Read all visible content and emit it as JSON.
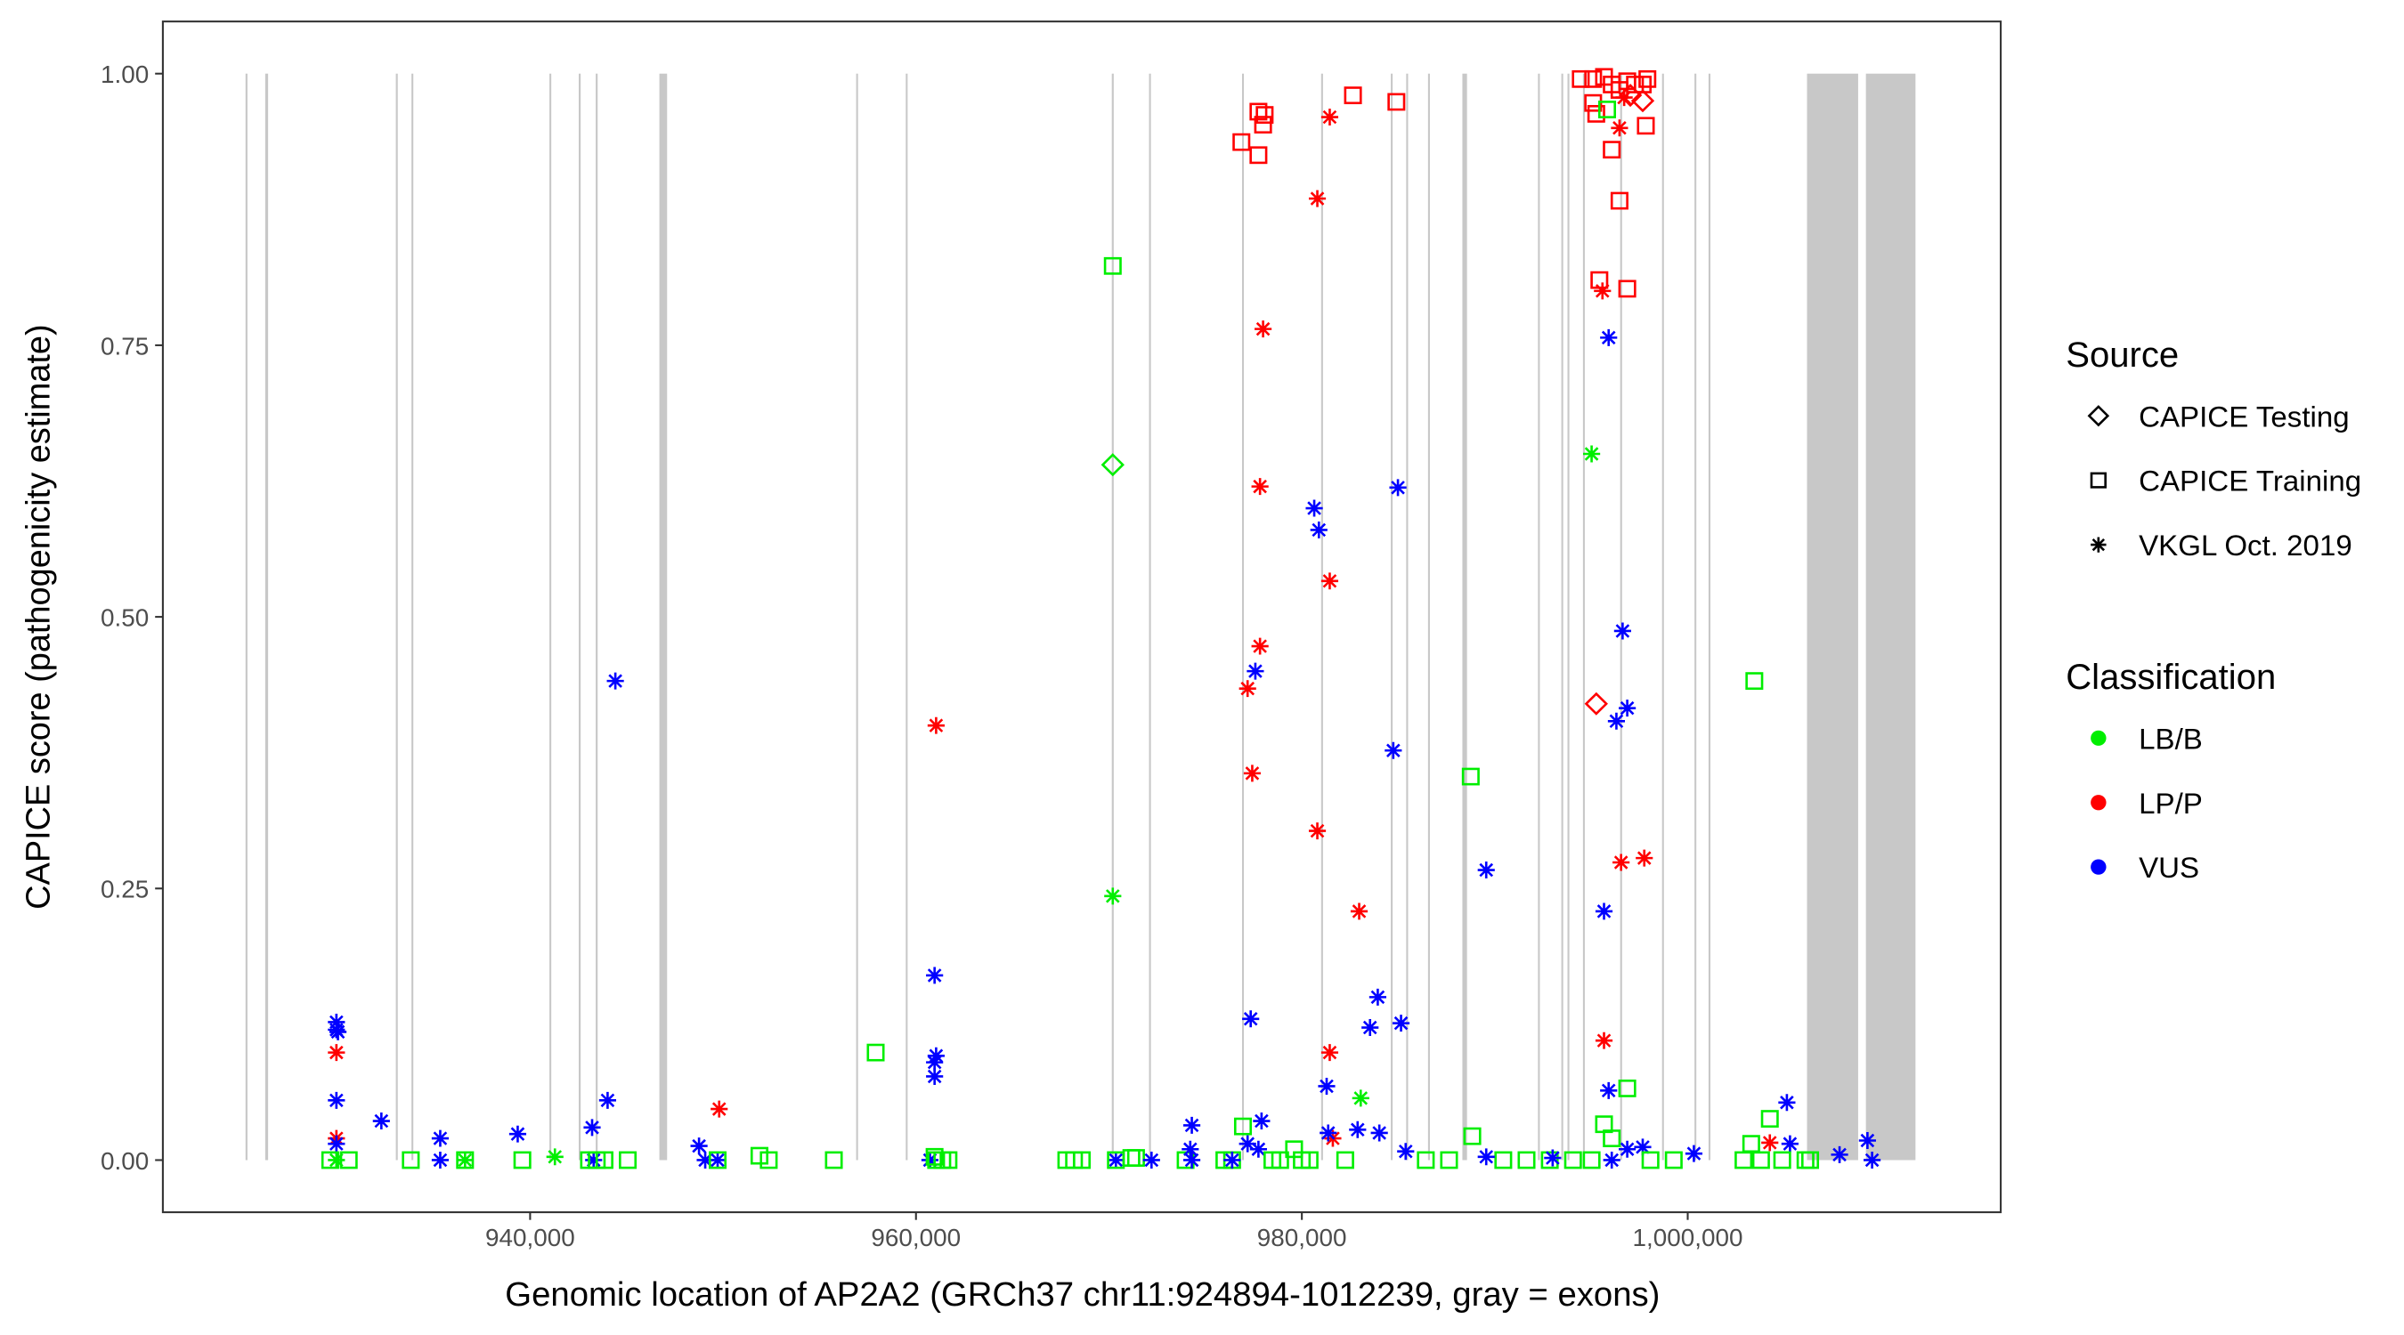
{
  "chart_data": {
    "type": "scatter",
    "xlabel": "Genomic location of AP2A2 (GRCh37 chr11:924894-1012239, gray = exons)",
    "ylabel": "CAPICE score (pathogenicity estimate)",
    "xlim": [
      920964,
      1016225
    ],
    "ylim": [
      -0.048,
      1.048
    ],
    "x_ticks": [
      940000,
      960000,
      980000,
      1000000
    ],
    "x_tick_labels": [
      "940,000",
      "960,000",
      "980,000",
      "1,000,000"
    ],
    "y_ticks": [
      0,
      0.25,
      0.5,
      0.75,
      1.0
    ],
    "y_tick_labels": [
      "0.00",
      "0.25",
      "0.50",
      "0.75",
      "1.00"
    ],
    "grid": false,
    "legend_placement": "right",
    "legend": {
      "source_title": "Source",
      "sources": [
        {
          "label": "CAPICE Testing",
          "shape": "diamond"
        },
        {
          "label": "CAPICE Training",
          "shape": "square"
        },
        {
          "label": "VKGL Oct. 2019",
          "shape": "asterisk"
        }
      ],
      "class_title": "Classification",
      "classes": [
        {
          "label": "LB/B",
          "color": "#00ee00"
        },
        {
          "label": "LP/P",
          "color": "#ff0000"
        },
        {
          "label": "VUS",
          "color": "#0000ff"
        }
      ]
    },
    "exon_color": "#c8c8c8",
    "exons": [
      [
        925250,
        925350
      ],
      [
        926270,
        926420
      ],
      [
        933040,
        933140
      ],
      [
        933850,
        933940
      ],
      [
        941000,
        941090
      ],
      [
        942520,
        942620
      ],
      [
        943400,
        943500
      ],
      [
        946700,
        947100
      ],
      [
        956900,
        956990
      ],
      [
        959470,
        959560
      ],
      [
        970150,
        970250
      ],
      [
        972080,
        972170
      ],
      [
        976900,
        976990
      ],
      [
        981000,
        981090
      ],
      [
        984610,
        984700
      ],
      [
        985410,
        985500
      ],
      [
        986540,
        986630
      ],
      [
        988320,
        988560
      ],
      [
        992240,
        992330
      ],
      [
        993450,
        993540
      ],
      [
        993770,
        993860
      ],
      [
        994570,
        994660
      ],
      [
        996500,
        996590
      ],
      [
        998670,
        998760
      ],
      [
        1000350,
        1000440
      ],
      [
        1001080,
        1001170
      ],
      [
        1006184,
        1008834
      ],
      [
        1009236,
        1011806
      ]
    ],
    "points_format": [
      "position",
      "score",
      "source_index",
      "class_index"
    ],
    "points": [
      [
        929960,
        0.127,
        2,
        2
      ],
      [
        929960,
        0.12,
        2,
        2
      ],
      [
        930040,
        0.118,
        2,
        2
      ],
      [
        929960,
        0.099,
        2,
        1
      ],
      [
        929960,
        0.055,
        2,
        2
      ],
      [
        929960,
        0.02,
        2,
        1
      ],
      [
        929960,
        0.015,
        2,
        2
      ],
      [
        929640,
        0,
        1,
        0
      ],
      [
        929960,
        0,
        2,
        0
      ],
      [
        930600,
        0,
        1,
        0
      ],
      [
        932290,
        0.036,
        2,
        2
      ],
      [
        933815,
        0,
        1,
        0
      ],
      [
        935341,
        0.02,
        2,
        2
      ],
      [
        935341,
        0,
        2,
        2
      ],
      [
        936627,
        0,
        1,
        0
      ],
      [
        936627,
        0,
        2,
        0
      ],
      [
        939357,
        0.024,
        2,
        2
      ],
      [
        939598,
        0,
        1,
        0
      ],
      [
        941285,
        0.003,
        2,
        0
      ],
      [
        943213,
        0.03,
        2,
        2
      ],
      [
        943293,
        0,
        2,
        2
      ],
      [
        943052,
        0,
        1,
        0
      ],
      [
        943454,
        0,
        1,
        0
      ],
      [
        943855,
        0,
        1,
        0
      ],
      [
        944016,
        0.055,
        2,
        2
      ],
      [
        944418,
        0.441,
        2,
        2
      ],
      [
        945060,
        0,
        1,
        0
      ],
      [
        948755,
        0.013,
        2,
        2
      ],
      [
        949076,
        0,
        2,
        2
      ],
      [
        949719,
        0,
        2,
        2
      ],
      [
        949719,
        0,
        1,
        0
      ],
      [
        949799,
        0.047,
        2,
        1
      ],
      [
        951887,
        0.004,
        1,
        0
      ],
      [
        952369,
        0,
        1,
        0
      ],
      [
        955743,
        0,
        1,
        0
      ],
      [
        957911,
        0.099,
        1,
        0
      ],
      [
        960964,
        0.17,
        2,
        2
      ],
      [
        961044,
        0.096,
        2,
        2
      ],
      [
        960964,
        0.09,
        2,
        2
      ],
      [
        960964,
        0.077,
        2,
        2
      ],
      [
        961044,
        0.4,
        2,
        1
      ],
      [
        960723,
        0,
        2,
        2
      ],
      [
        960964,
        0.003,
        1,
        0
      ],
      [
        961044,
        0,
        1,
        0
      ],
      [
        961365,
        0,
        1,
        0
      ],
      [
        961686,
        0,
        1,
        0
      ],
      [
        967791,
        0,
        1,
        0
      ],
      [
        968192,
        0,
        1,
        0
      ],
      [
        968594,
        0,
        1,
        0
      ],
      [
        970200,
        0.823,
        1,
        0
      ],
      [
        970200,
        0.64,
        0,
        0
      ],
      [
        970200,
        0.243,
        2,
        0
      ],
      [
        970361,
        0,
        2,
        2
      ],
      [
        970361,
        0,
        1,
        0
      ],
      [
        971164,
        0.002,
        1,
        0
      ],
      [
        971405,
        0.002,
        1,
        0
      ],
      [
        972208,
        0,
        2,
        2
      ],
      [
        973975,
        0,
        1,
        0
      ],
      [
        974216,
        0.01,
        2,
        2
      ],
      [
        974297,
        0.032,
        2,
        2
      ],
      [
        974297,
        0,
        2,
        2
      ],
      [
        975984,
        0,
        1,
        0
      ],
      [
        976385,
        0,
        1,
        0
      ],
      [
        976385,
        0,
        2,
        2
      ],
      [
        976947,
        0.031,
        1,
        0
      ],
      [
        976867,
        0.937,
        1,
        1
      ],
      [
        977188,
        0.434,
        2,
        1
      ],
      [
        977590,
        0.45,
        2,
        2
      ],
      [
        977429,
        0.356,
        2,
        1
      ],
      [
        977831,
        0.473,
        2,
        1
      ],
      [
        977831,
        0.62,
        2,
        1
      ],
      [
        977991,
        0.765,
        2,
        1
      ],
      [
        977750,
        0.965,
        1,
        1
      ],
      [
        978072,
        0.962,
        1,
        1
      ],
      [
        977991,
        0.953,
        1,
        1
      ],
      [
        977750,
        0.925,
        1,
        1
      ],
      [
        977349,
        0.13,
        2,
        2
      ],
      [
        977911,
        0.036,
        2,
        2
      ],
      [
        977188,
        0.015,
        2,
        2
      ],
      [
        977750,
        0.01,
        2,
        2
      ],
      [
        980803,
        0.885,
        2,
        1
      ],
      [
        981445,
        0.96,
        2,
        1
      ],
      [
        982650,
        0.98,
        1,
        1
      ],
      [
        984900,
        0.974,
        1,
        1
      ],
      [
        980642,
        0.6,
        2,
        2
      ],
      [
        980883,
        0.58,
        2,
        2
      ],
      [
        980803,
        0.303,
        2,
        1
      ],
      [
        981445,
        0.533,
        2,
        1
      ],
      [
        981445,
        0.099,
        2,
        1
      ],
      [
        981285,
        0.068,
        2,
        2
      ],
      [
        981606,
        0.02,
        2,
        1
      ],
      [
        981365,
        0.025,
        2,
        2
      ],
      [
        983052,
        0.057,
        2,
        0
      ],
      [
        982971,
        0.229,
        2,
        1
      ],
      [
        984980,
        0.619,
        2,
        2
      ],
      [
        984739,
        0.377,
        2,
        2
      ],
      [
        983935,
        0.15,
        2,
        2
      ],
      [
        983534,
        0.122,
        2,
        2
      ],
      [
        985141,
        0.126,
        2,
        2
      ],
      [
        982891,
        0.028,
        2,
        2
      ],
      [
        984016,
        0.025,
        2,
        2
      ],
      [
        979598,
        0.01,
        1,
        0
      ],
      [
        978473,
        0,
        1,
        0
      ],
      [
        978875,
        0,
        1,
        0
      ],
      [
        979999,
        0,
        1,
        0
      ],
      [
        980401,
        0,
        1,
        0
      ],
      [
        982249,
        0,
        1,
        0
      ],
      [
        985382,
        0.008,
        2,
        2
      ],
      [
        988754,
        0.353,
        1,
        0
      ],
      [
        989557,
        0.267,
        2,
        2
      ],
      [
        988834,
        0.022,
        1,
        0
      ],
      [
        986425,
        0,
        1,
        0
      ],
      [
        987630,
        0,
        1,
        0
      ],
      [
        990441,
        0,
        1,
        0
      ],
      [
        991646,
        0,
        1,
        0
      ],
      [
        992851,
        0,
        1,
        0
      ],
      [
        994055,
        0,
        1,
        0
      ],
      [
        989557,
        0.003,
        2,
        2
      ],
      [
        993000,
        0.002,
        2,
        2
      ],
      [
        994457,
        0.995,
        1,
        1
      ],
      [
        995100,
        0.995,
        1,
        1
      ],
      [
        995662,
        0.997,
        1,
        1
      ],
      [
        996063,
        0.99,
        1,
        1
      ],
      [
        996465,
        0.985,
        1,
        1
      ],
      [
        996866,
        0.993,
        1,
        1
      ],
      [
        997267,
        0.99,
        1,
        1
      ],
      [
        997668,
        0.99,
        1,
        1
      ],
      [
        997909,
        0.995,
        1,
        1
      ],
      [
        995100,
        0.973,
        1,
        1
      ],
      [
        995260,
        0.963,
        1,
        1
      ],
      [
        996063,
        0.93,
        1,
        1
      ],
      [
        996465,
        0.883,
        1,
        1
      ],
      [
        995421,
        0.81,
        1,
        1
      ],
      [
        996866,
        0.802,
        1,
        1
      ],
      [
        997829,
        0.952,
        1,
        1
      ],
      [
        996465,
        0.95,
        2,
        1
      ],
      [
        996706,
        0.978,
        2,
        1
      ],
      [
        997668,
        0.975,
        0,
        1
      ],
      [
        997026,
        0.98,
        0,
        1
      ],
      [
        995822,
        0.967,
        1,
        0
      ],
      [
        995581,
        0.8,
        2,
        1
      ],
      [
        995902,
        0.757,
        2,
        2
      ],
      [
        995019,
        0.65,
        2,
        0
      ],
      [
        995260,
        0.42,
        0,
        1
      ],
      [
        996625,
        0.487,
        2,
        2
      ],
      [
        996866,
        0.416,
        2,
        2
      ],
      [
        996304,
        0.404,
        2,
        2
      ],
      [
        996545,
        0.274,
        2,
        1
      ],
      [
        997749,
        0.278,
        2,
        1
      ],
      [
        995662,
        0.229,
        2,
        2
      ],
      [
        995662,
        0.11,
        2,
        1
      ],
      [
        995902,
        0.064,
        2,
        2
      ],
      [
        996866,
        0.066,
        1,
        0
      ],
      [
        995662,
        0.033,
        1,
        0
      ],
      [
        996063,
        0.02,
        1,
        0
      ],
      [
        995019,
        0,
        1,
        0
      ],
      [
        996063,
        0,
        2,
        2
      ],
      [
        996866,
        0.01,
        2,
        2
      ],
      [
        997668,
        0.012,
        2,
        2
      ],
      [
        998070,
        0,
        1,
        0
      ],
      [
        999276,
        0,
        1,
        0
      ],
      [
        1000320,
        0.006,
        2,
        2
      ],
      [
        1003453,
        0.441,
        1,
        0
      ],
      [
        1004256,
        0.038,
        1,
        0
      ],
      [
        1005140,
        0.053,
        2,
        2
      ],
      [
        1004256,
        0.016,
        2,
        1
      ],
      [
        1003292,
        0.015,
        1,
        0
      ],
      [
        1005301,
        0.015,
        2,
        2
      ],
      [
        1002890,
        0,
        1,
        0
      ],
      [
        1003800,
        0,
        1,
        0
      ],
      [
        1004899,
        0,
        1,
        0
      ],
      [
        1006104,
        0,
        1,
        0
      ],
      [
        1006345,
        0,
        1,
        0
      ],
      [
        1007870,
        0.005,
        2,
        2
      ],
      [
        1009316,
        0.018,
        2,
        2
      ],
      [
        1009557,
        0,
        2,
        2
      ]
    ]
  }
}
